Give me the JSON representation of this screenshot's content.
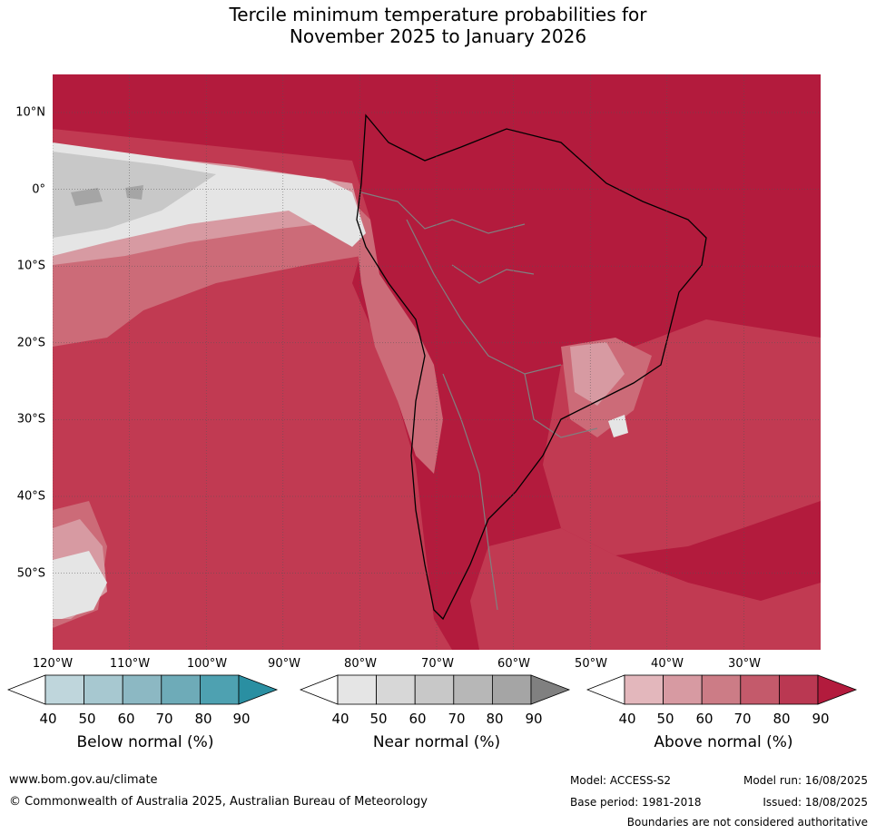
{
  "title": {
    "line1": "Tercile minimum temperature probabilities for",
    "line2": "November 2025 to January 2026"
  },
  "map": {
    "lat_labels": [
      "10°N",
      "0°",
      "10°S",
      "20°S",
      "30°S",
      "40°S",
      "50°S"
    ],
    "lon_labels": [
      "120°W",
      "110°W",
      "100°W",
      "90°W",
      "80°W",
      "70°W",
      "60°W",
      "50°W",
      "40°W",
      "30°W"
    ],
    "colors": {
      "above_dark": "#b31b3d",
      "above_mid": "#c13a52",
      "above_light": "#cc6b78",
      "above_pale": "#d79aa2",
      "near_light": "#e5e5e5",
      "near_mid": "#c8c8c8",
      "near_dark": "#a5a5a5",
      "coast": "#000000",
      "border": "#808080"
    }
  },
  "colorbars": [
    {
      "name": "Below normal (%)",
      "ticks": [
        "40",
        "50",
        "60",
        "70",
        "80",
        "90"
      ],
      "colors": [
        "#ffffff",
        "#bfd6dc",
        "#a7c8d0",
        "#8cb8c3",
        "#6eabb8",
        "#4ea1b1",
        "#2a8fa2"
      ]
    },
    {
      "name": "Near normal (%)",
      "ticks": [
        "40",
        "50",
        "60",
        "70",
        "80",
        "90"
      ],
      "colors": [
        "#ffffff",
        "#e5e5e5",
        "#d7d7d7",
        "#c8c8c8",
        "#b7b7b7",
        "#a5a5a5",
        "#808080"
      ]
    },
    {
      "name": "Above normal (%)",
      "ticks": [
        "40",
        "50",
        "60",
        "70",
        "80",
        "90"
      ],
      "colors": [
        "#ffffff",
        "#e3b7bc",
        "#d79aa2",
        "#cc7c86",
        "#c45a6b",
        "#ba3852",
        "#b31b3d"
      ]
    }
  ],
  "footer": {
    "website": "www.bom.gov.au/climate",
    "copyright": "© Commonwealth of Australia 2025, Australian Bureau of Meteorology",
    "model": "Model: ACCESS-S2",
    "model_run": "Model run: 16/08/2025",
    "base_period": "Base period: 1981-2018",
    "issued": "Issued: 18/08/2025",
    "disclaimer": "Boundaries are not considered authoritative"
  }
}
